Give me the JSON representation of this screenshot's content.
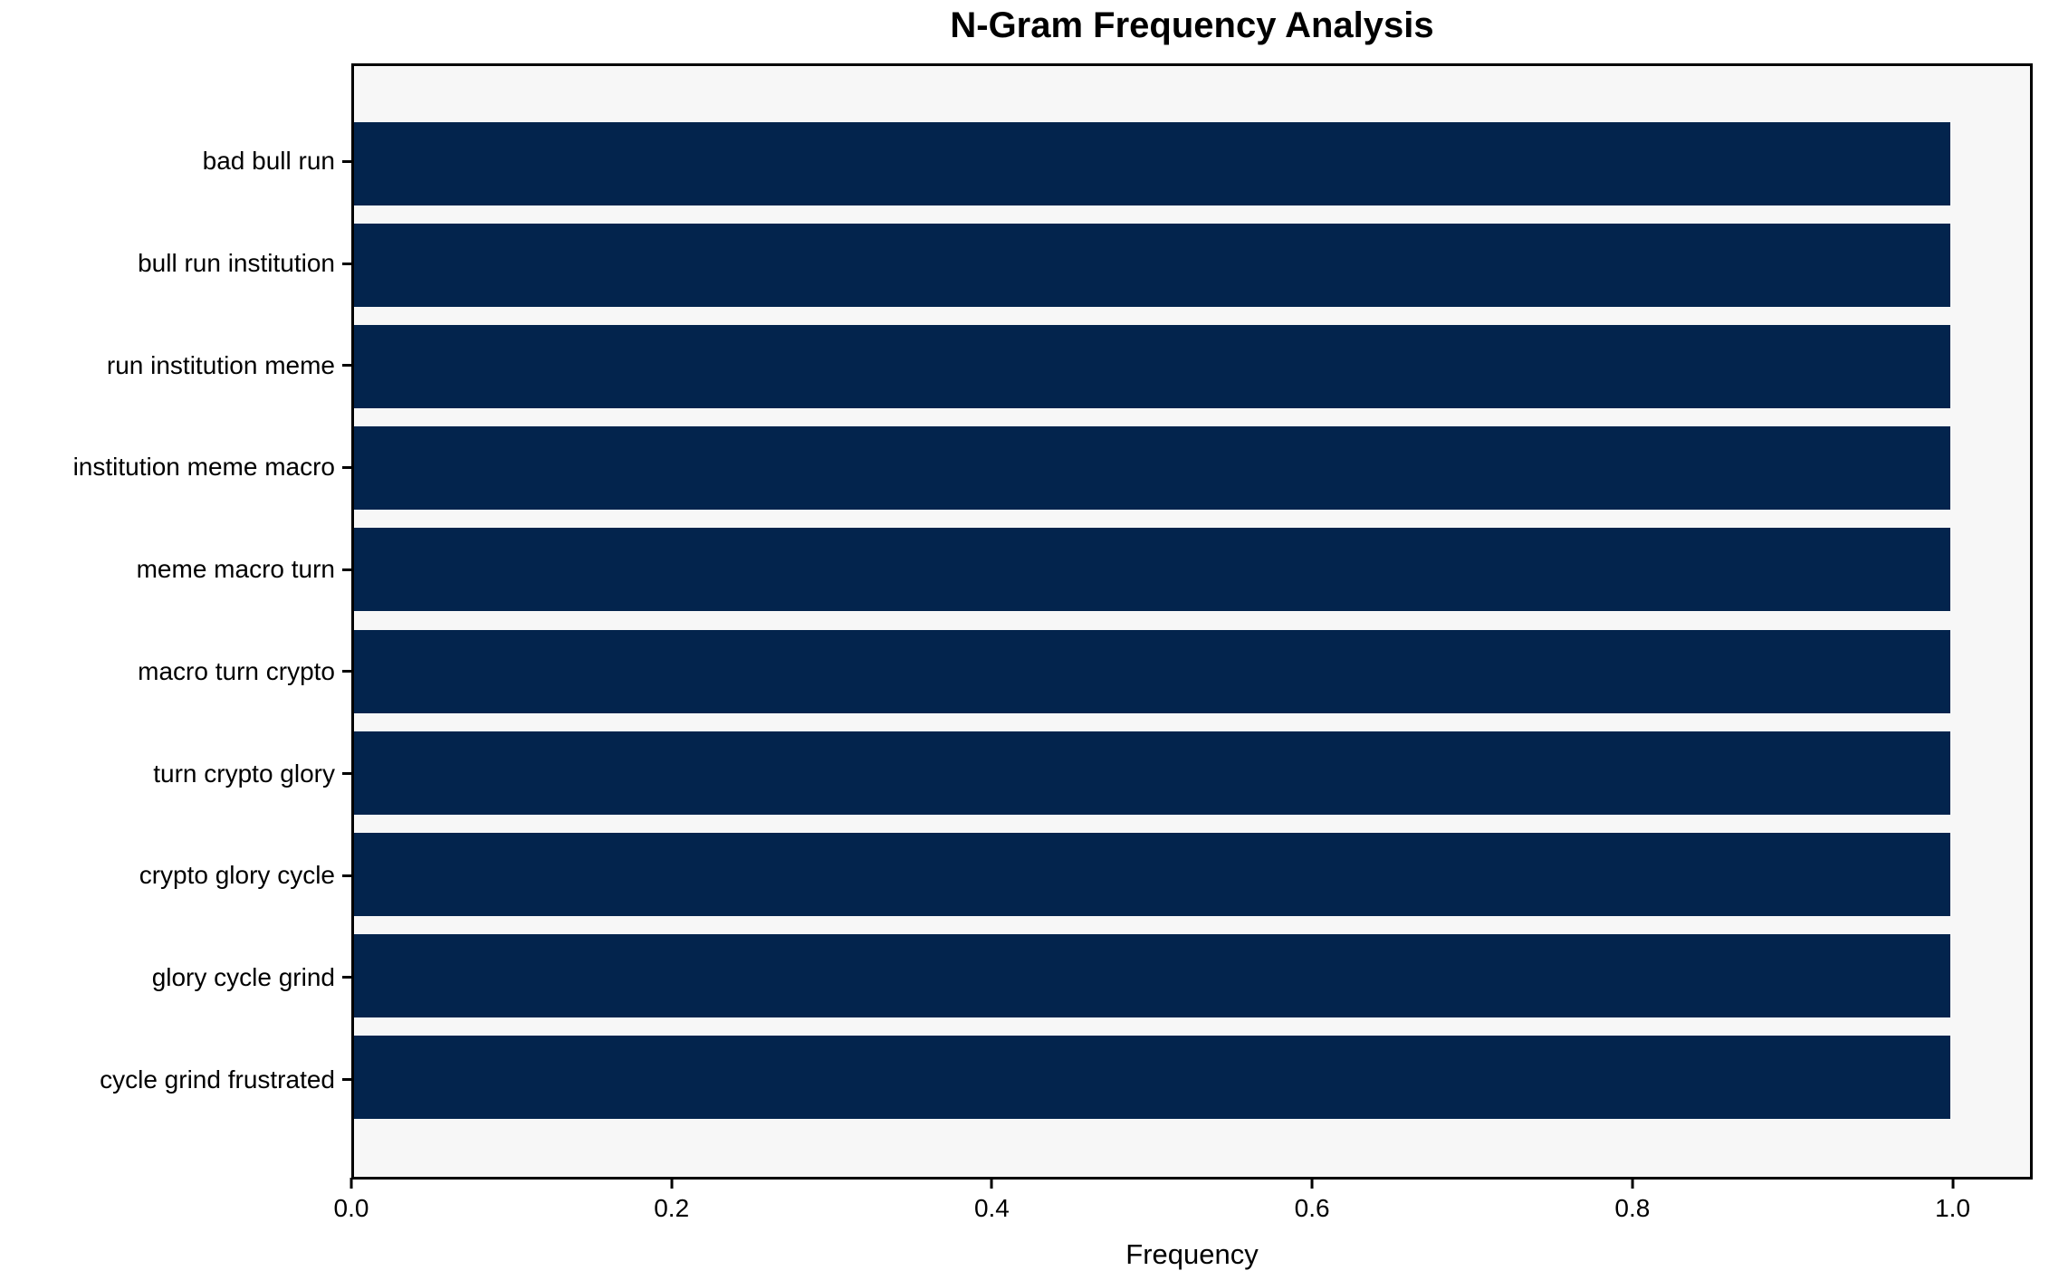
{
  "chart_data": {
    "type": "bar",
    "orientation": "horizontal",
    "title": "N-Gram Frequency Analysis",
    "xlabel": "Frequency",
    "ylabel": "",
    "categories": [
      "bad bull run",
      "bull run institution",
      "run institution meme",
      "institution meme macro",
      "meme macro turn",
      "macro turn crypto",
      "turn crypto glory",
      "crypto glory cycle",
      "glory cycle grind",
      "cycle grind frustrated"
    ],
    "values": [
      1.0,
      1.0,
      1.0,
      1.0,
      1.0,
      1.0,
      1.0,
      1.0,
      1.0,
      1.0
    ],
    "xlim": [
      0,
      1.05
    ],
    "xticks": [
      0.0,
      0.2,
      0.4,
      0.6,
      0.8,
      1.0
    ],
    "xtick_labels": [
      "0.0",
      "0.2",
      "0.4",
      "0.6",
      "0.8",
      "1.0"
    ],
    "bar_color": "#03244d",
    "plot_bg": "#f7f7f7",
    "fig_bg": "#ffffff",
    "grid": false,
    "legend": null
  }
}
